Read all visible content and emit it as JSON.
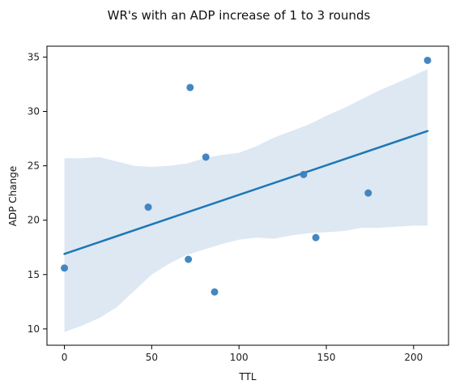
{
  "chart_data": {
    "type": "scatter",
    "title": "WR's with an ADP increase of 1 to 3 rounds",
    "xlabel": "TTL",
    "ylabel": "ADP Change",
    "xlim": [
      -10,
      220
    ],
    "ylim": [
      8.5,
      36
    ],
    "xticks": [
      0,
      50,
      100,
      150,
      200
    ],
    "yticks": [
      10,
      15,
      20,
      25,
      30,
      35
    ],
    "grid": false,
    "legend": "none",
    "points": [
      {
        "x": 0,
        "y": 15.6
      },
      {
        "x": 48,
        "y": 21.2
      },
      {
        "x": 71,
        "y": 16.4
      },
      {
        "x": 72,
        "y": 32.2
      },
      {
        "x": 81,
        "y": 25.8
      },
      {
        "x": 86,
        "y": 13.4
      },
      {
        "x": 137,
        "y": 24.2
      },
      {
        "x": 144,
        "y": 18.4
      },
      {
        "x": 174,
        "y": 22.5
      },
      {
        "x": 208,
        "y": 34.7
      }
    ],
    "regression": {
      "x": [
        0,
        208
      ],
      "y": [
        16.9,
        28.2
      ]
    },
    "confidence_band": [
      {
        "x": 0,
        "lower": 9.7,
        "upper": 25.7
      },
      {
        "x": 10,
        "lower": 10.3,
        "upper": 25.7
      },
      {
        "x": 20,
        "lower": 11.0,
        "upper": 25.8
      },
      {
        "x": 30,
        "lower": 12.0,
        "upper": 25.4
      },
      {
        "x": 40,
        "lower": 13.5,
        "upper": 25.0
      },
      {
        "x": 50,
        "lower": 15.0,
        "upper": 24.9
      },
      {
        "x": 60,
        "lower": 16.0,
        "upper": 25.0
      },
      {
        "x": 70,
        "lower": 16.8,
        "upper": 25.2
      },
      {
        "x": 80,
        "lower": 17.3,
        "upper": 25.7
      },
      {
        "x": 90,
        "lower": 17.8,
        "upper": 26.0
      },
      {
        "x": 100,
        "lower": 18.2,
        "upper": 26.2
      },
      {
        "x": 110,
        "lower": 18.4,
        "upper": 26.8
      },
      {
        "x": 120,
        "lower": 18.3,
        "upper": 27.6
      },
      {
        "x": 130,
        "lower": 18.6,
        "upper": 28.2
      },
      {
        "x": 140,
        "lower": 18.8,
        "upper": 28.8
      },
      {
        "x": 150,
        "lower": 18.9,
        "upper": 29.6
      },
      {
        "x": 160,
        "lower": 19.0,
        "upper": 30.3
      },
      {
        "x": 170,
        "lower": 19.3,
        "upper": 31.1
      },
      {
        "x": 180,
        "lower": 19.3,
        "upper": 31.9
      },
      {
        "x": 190,
        "lower": 19.4,
        "upper": 32.6
      },
      {
        "x": 200,
        "lower": 19.5,
        "upper": 33.3
      },
      {
        "x": 208,
        "lower": 19.5,
        "upper": 33.9
      }
    ],
    "colors": {
      "points": "#3a7fbe",
      "line": "#1f77b4",
      "band": "#dde8f3"
    }
  }
}
